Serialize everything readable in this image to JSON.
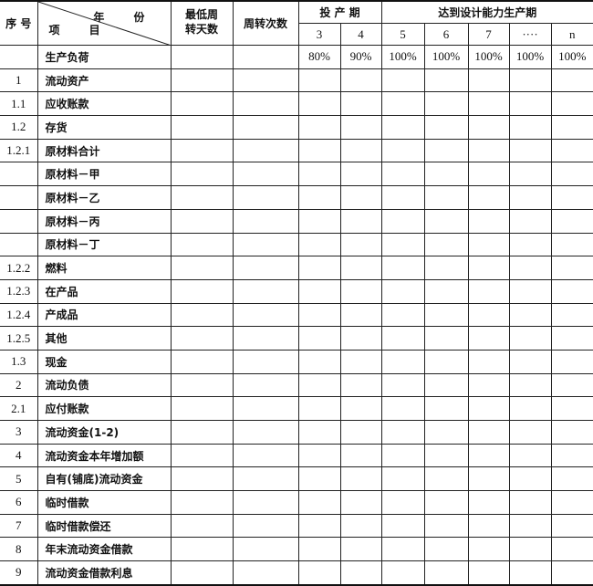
{
  "header": {
    "seq": "序 号",
    "year": "年 份",
    "item": "项 目",
    "min_days": "最低周\n转天数",
    "min_days_l1": "最低周",
    "min_days_l2": "转天数",
    "turnover": "周转次数",
    "trial_period": "投 产 期",
    "design_period": "达到设计能力生产期",
    "years": [
      "3",
      "4",
      "5",
      "6",
      "7",
      "····",
      "n"
    ]
  },
  "load_row": {
    "label": "生产负荷",
    "values": [
      "80%",
      "90%",
      "100%",
      "100%",
      "100%",
      "100%",
      "100%"
    ]
  },
  "rows": [
    {
      "seq": "1",
      "item": "流动资产"
    },
    {
      "seq": "1.1",
      "item": "应收账款"
    },
    {
      "seq": "1.2",
      "item": "存货"
    },
    {
      "seq": "1.2.1",
      "item": "原材料合计"
    },
    {
      "seq": "",
      "item": "原材料－甲"
    },
    {
      "seq": "",
      "item": "原材料－乙"
    },
    {
      "seq": "",
      "item": "原材料－丙"
    },
    {
      "seq": "",
      "item": "原材料－丁"
    },
    {
      "seq": "1.2.2",
      "item": "燃料"
    },
    {
      "seq": "1.2.3",
      "item": "在产品"
    },
    {
      "seq": "1.2.4",
      "item": "产成品"
    },
    {
      "seq": "1.2.5",
      "item": "其他"
    },
    {
      "seq": "1.3",
      "item": "现金"
    },
    {
      "seq": "2",
      "item": "流动负债"
    },
    {
      "seq": "2.1",
      "item": "应付账款"
    },
    {
      "seq": "3",
      "item": "流动资金(1-2)"
    },
    {
      "seq": "4",
      "item": "流动资金本年增加额"
    },
    {
      "seq": "5",
      "item": "自有(铺底)流动资金"
    },
    {
      "seq": "6",
      "item": "临时借款"
    },
    {
      "seq": "7",
      "item": "临时借款偿还"
    },
    {
      "seq": "8",
      "item": "年末流动资金借款"
    },
    {
      "seq": "9",
      "item": "流动资金借款利息"
    }
  ]
}
